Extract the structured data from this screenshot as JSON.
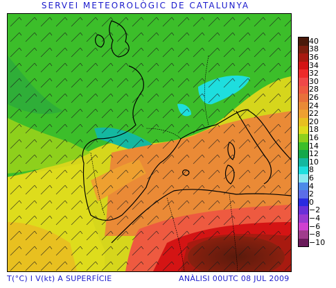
{
  "header": {
    "title": "SERVEI METEOROLÒGIC DE CATALUNYA"
  },
  "footer": {
    "left_caption": "T(°C) I V(kt) A SUPERFÍCIE",
    "right_caption": "ANÀLISI 00UTC 08 JUL 2009"
  },
  "legend": {
    "items": [
      {
        "label": "40",
        "color": "#4a1a0a"
      },
      {
        "label": "38",
        "color": "#7a1f0e"
      },
      {
        "label": "36",
        "color": "#a81a10"
      },
      {
        "label": "34",
        "color": "#d41414"
      },
      {
        "label": "32",
        "color": "#ee2a2a"
      },
      {
        "label": "30",
        "color": "#f04848"
      },
      {
        "label": "28",
        "color": "#ee5a40"
      },
      {
        "label": "26",
        "color": "#e8703a"
      },
      {
        "label": "24",
        "color": "#ea8a36"
      },
      {
        "label": "22",
        "color": "#eea030"
      },
      {
        "label": "20",
        "color": "#e8c020"
      },
      {
        "label": "18",
        "color": "#dedc1c"
      },
      {
        "label": "16",
        "color": "#8ed01c"
      },
      {
        "label": "14",
        "color": "#3cbe2a"
      },
      {
        "label": "12",
        "color": "#14a84a"
      },
      {
        "label": "10",
        "color": "#14b8a0"
      },
      {
        "label": "8",
        "color": "#1edede"
      },
      {
        "label": "6",
        "color": "#8ae8f0"
      },
      {
        "label": "4",
        "color": "#4c8ae8"
      },
      {
        "label": "2",
        "color": "#5c6ee8"
      },
      {
        "label": "0",
        "color": "#2a2ae0"
      },
      {
        "label": "−2",
        "color": "#6a30d8"
      },
      {
        "label": "−4",
        "color": "#9a3ad0"
      },
      {
        "label": "−6",
        "color": "#d040d0"
      },
      {
        "label": "−8",
        "color": "#a03c8c"
      },
      {
        "label": "−10",
        "color": "#6a1a5a"
      }
    ]
  }
}
